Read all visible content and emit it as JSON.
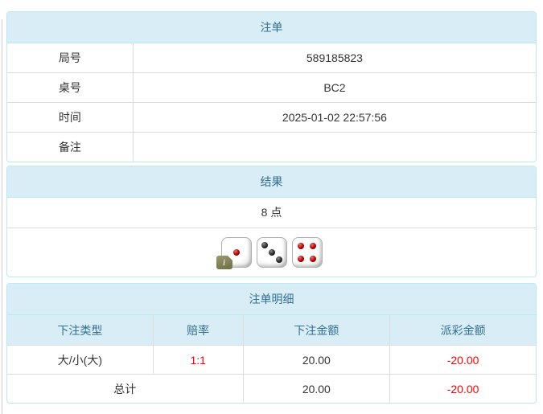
{
  "colors": {
    "accent_bg": "#d9edf7",
    "accent_border": "#bce8f1",
    "accent_text": "#31708f",
    "divider": "#dddddd",
    "body_text": "#333333",
    "negative_text": "#ff0000"
  },
  "bet_slip": {
    "title": "注单",
    "rows": [
      {
        "label": "局号",
        "value": "589185823"
      },
      {
        "label": "桌号",
        "value": "BC2"
      },
      {
        "label": "时间",
        "value": "2025-01-02 22:57:56"
      },
      {
        "label": "备注",
        "value": ""
      }
    ]
  },
  "result": {
    "title": "结果",
    "points": "8 点",
    "dice": [
      {
        "value": 1,
        "color": "red"
      },
      {
        "value": 3,
        "color": "black"
      },
      {
        "value": 4,
        "color": "red"
      }
    ],
    "info_icon": "i"
  },
  "details": {
    "title": "注单明细",
    "columns": [
      "下注类型",
      "赔率",
      "下注金额",
      "派彩金额"
    ],
    "rows": [
      {
        "bet_type": "大/小(大)",
        "odds": "1:1",
        "bet_amount": "20.00",
        "payout": "-20.00"
      }
    ],
    "total": {
      "label": "总计",
      "bet_amount": "20.00",
      "payout": "-20.00"
    }
  }
}
